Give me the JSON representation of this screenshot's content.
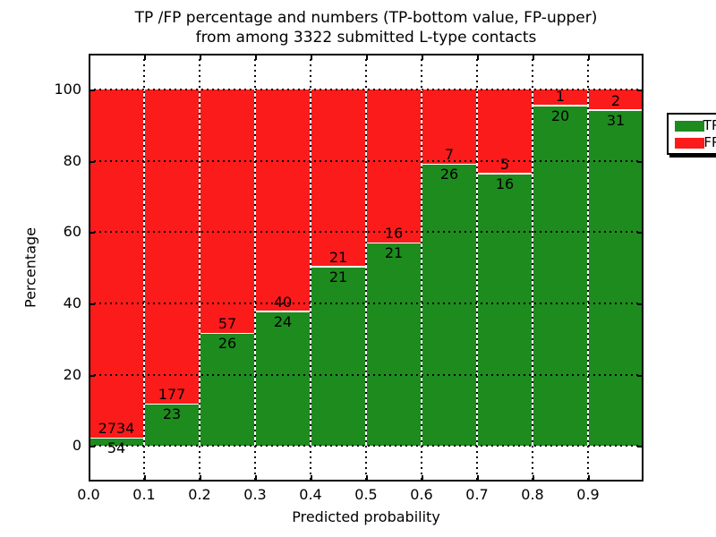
{
  "chart_data": {
    "type": "bar",
    "stacked": true,
    "title_lines": [
      "TP /FP percentage and numbers (TP-bottom value, FP-upper)",
      "from among 3322 submitted L-type contacts"
    ],
    "xlabel": "Predicted probability",
    "ylabel": "Percentage",
    "xlim": [
      0,
      1.0
    ],
    "ylim": [
      -10,
      110
    ],
    "grid": true,
    "bin_width": 0.1,
    "x_tick_values": [
      0.0,
      0.1,
      0.2,
      0.3,
      0.4,
      0.5,
      0.6,
      0.7,
      0.8,
      0.9
    ],
    "x_tick_labels": [
      "0.0",
      "0.1",
      "0.2",
      "0.3",
      "0.4",
      "0.5",
      "0.6",
      "0.7",
      "0.8",
      "0.9"
    ],
    "y_tick_values": [
      0,
      20,
      40,
      60,
      80,
      100
    ],
    "y_tick_labels": [
      "0",
      "20",
      "40",
      "60",
      "80",
      "100"
    ],
    "categories": [
      "0.0-0.1",
      "0.1-0.2",
      "0.2-0.3",
      "0.3-0.4",
      "0.4-0.5",
      "0.5-0.6",
      "0.6-0.7",
      "0.7-0.8",
      "0.8-0.9",
      "0.9-1.0"
    ],
    "series": [
      {
        "name": "TP",
        "color": "#1e8b1e",
        "values": [
          54,
          23,
          26,
          24,
          21,
          21,
          26,
          16,
          20,
          31
        ]
      },
      {
        "name": "FP",
        "color": "#fb1b1b",
        "values": [
          2734,
          177,
          57,
          40,
          21,
          16,
          7,
          5,
          1,
          2
        ]
      }
    ],
    "bar_value_labels_shown": true,
    "total_contacts_in_title": "3322",
    "legend": {
      "position": "upper right",
      "entries": [
        "TP",
        "FP"
      ]
    }
  },
  "colors": {
    "tp_green": "#1e8b1e",
    "fp_red": "#fb1b1b",
    "text": "#000000",
    "background": "#ffffff"
  }
}
